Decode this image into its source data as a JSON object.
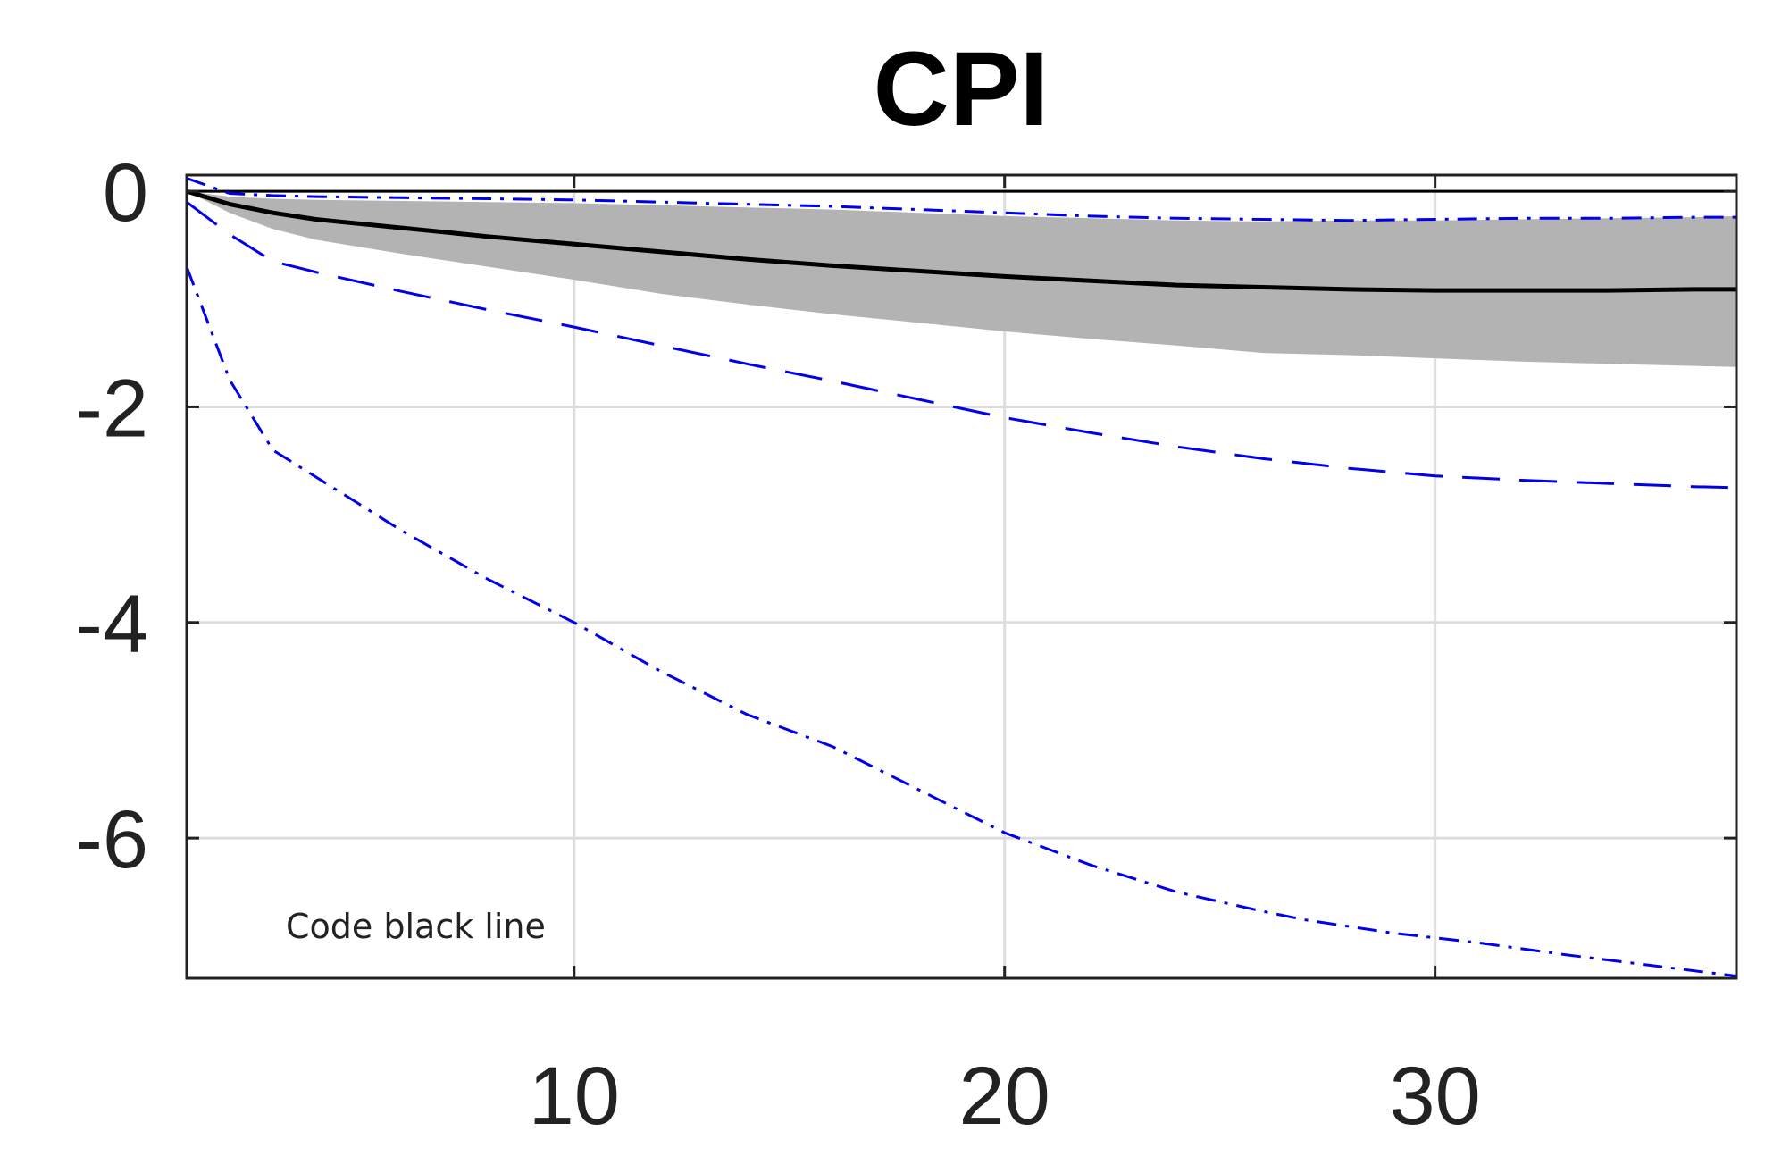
{
  "chart_data": {
    "type": "line",
    "title": "CPI",
    "xlabel": "",
    "ylabel": "",
    "xlim": [
      1,
      37
    ],
    "ylim": [
      -7.3,
      0.15
    ],
    "x_ticks": [
      10,
      20,
      30
    ],
    "x_tick_labels": [
      "10",
      "20",
      "30"
    ],
    "y_ticks": [
      0,
      -2,
      -4,
      -6
    ],
    "y_tick_labels": [
      "0",
      "-2",
      "-4",
      "-6"
    ],
    "grid": true,
    "annotation": "Code black line",
    "colors": {
      "median": "#000000",
      "band": "#b3b3b3",
      "dashed": "#0000ee",
      "grid": "#dddddd",
      "axis": "#222222"
    },
    "band": {
      "x": [
        1,
        2,
        3,
        4,
        6,
        8,
        10,
        12,
        14,
        16,
        18,
        20,
        22,
        24,
        26,
        28,
        30,
        32,
        34,
        36,
        37
      ],
      "upper": [
        0,
        -0.05,
        -0.07,
        -0.08,
        -0.09,
        -0.1,
        -0.11,
        -0.13,
        -0.15,
        -0.17,
        -0.2,
        -0.23,
        -0.25,
        -0.27,
        -0.28,
        -0.27,
        -0.27,
        -0.26,
        -0.25,
        -0.24,
        -0.23
      ],
      "lower": [
        0,
        -0.2,
        -0.35,
        -0.45,
        -0.58,
        -0.7,
        -0.82,
        -0.95,
        -1.05,
        -1.14,
        -1.22,
        -1.3,
        -1.37,
        -1.43,
        -1.5,
        -1.52,
        -1.55,
        -1.58,
        -1.6,
        -1.62,
        -1.63
      ]
    },
    "series": [
      {
        "style": "solid-black",
        "x": [
          1,
          2,
          3,
          4,
          6,
          8,
          10,
          12,
          14,
          16,
          18,
          20,
          22,
          24,
          26,
          28,
          30,
          32,
          34,
          36,
          37
        ],
        "values": [
          0,
          -0.12,
          -0.2,
          -0.26,
          -0.34,
          -0.42,
          -0.49,
          -0.56,
          -0.63,
          -0.69,
          -0.74,
          -0.79,
          -0.83,
          -0.87,
          -0.89,
          -0.91,
          -0.92,
          -0.92,
          -0.92,
          -0.91,
          -0.91
        ]
      },
      {
        "style": "dashdot-blue-upper",
        "x": [
          1,
          2,
          3,
          4,
          6,
          8,
          10,
          12,
          14,
          16,
          18,
          20,
          22,
          24,
          26,
          28,
          30,
          32,
          34,
          36,
          37
        ],
        "values": [
          0.12,
          -0.02,
          -0.04,
          -0.05,
          -0.06,
          -0.07,
          -0.08,
          -0.1,
          -0.12,
          -0.14,
          -0.17,
          -0.2,
          -0.23,
          -0.25,
          -0.26,
          -0.27,
          -0.26,
          -0.25,
          -0.25,
          -0.24,
          -0.24
        ]
      },
      {
        "style": "dashed-blue",
        "x": [
          1,
          2,
          3,
          4,
          6,
          8,
          10,
          12,
          14,
          16,
          18,
          20,
          22,
          24,
          26,
          28,
          30,
          32,
          34,
          36,
          37
        ],
        "values": [
          -0.1,
          -0.4,
          -0.65,
          -0.75,
          -0.93,
          -1.1,
          -1.26,
          -1.43,
          -1.6,
          -1.76,
          -1.93,
          -2.1,
          -2.24,
          -2.37,
          -2.48,
          -2.57,
          -2.64,
          -2.68,
          -2.71,
          -2.74,
          -2.75
        ]
      },
      {
        "style": "dashdot-blue-lower",
        "x": [
          1,
          2,
          3,
          4,
          5,
          6,
          8,
          10,
          12,
          14,
          16,
          17,
          19,
          20,
          22,
          24,
          26,
          27,
          29,
          31,
          33,
          35,
          37
        ],
        "values": [
          -0.7,
          -1.75,
          -2.4,
          -2.65,
          -2.9,
          -3.15,
          -3.6,
          -4.0,
          -4.45,
          -4.85,
          -5.15,
          -5.35,
          -5.75,
          -5.95,
          -6.25,
          -6.5,
          -6.68,
          -6.76,
          -6.88,
          -6.97,
          -7.08,
          -7.18,
          -7.28
        ]
      }
    ]
  }
}
